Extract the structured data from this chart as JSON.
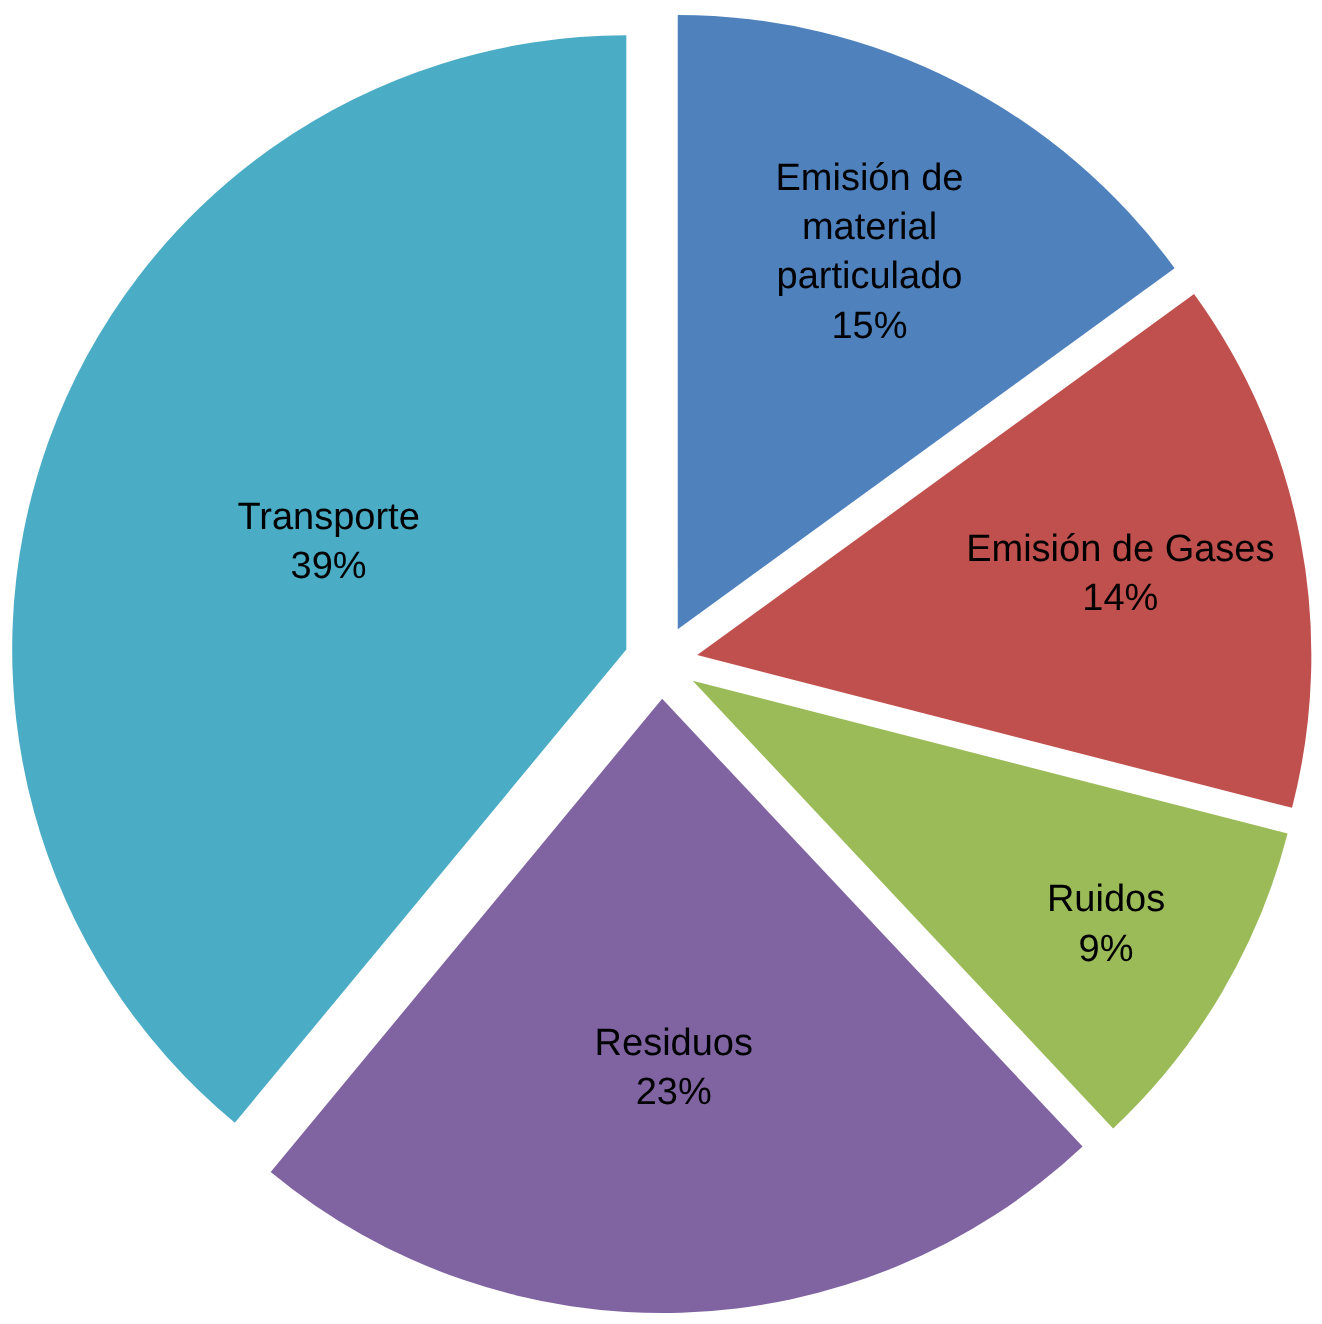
{
  "chart_data": {
    "type": "pie",
    "categories": [
      "Emisión de material particulado",
      "Emisión de Gases",
      "Ruidos",
      "Residuos",
      "Transporte"
    ],
    "values": [
      15,
      14,
      9,
      23,
      39
    ],
    "value_labels": [
      "15%",
      "14%",
      "9%",
      "23%",
      "39%"
    ],
    "colors": [
      "#4f81bd",
      "#c0504d",
      "#9bbb59",
      "#8064a2",
      "#4bacc6"
    ],
    "legend": false
  }
}
